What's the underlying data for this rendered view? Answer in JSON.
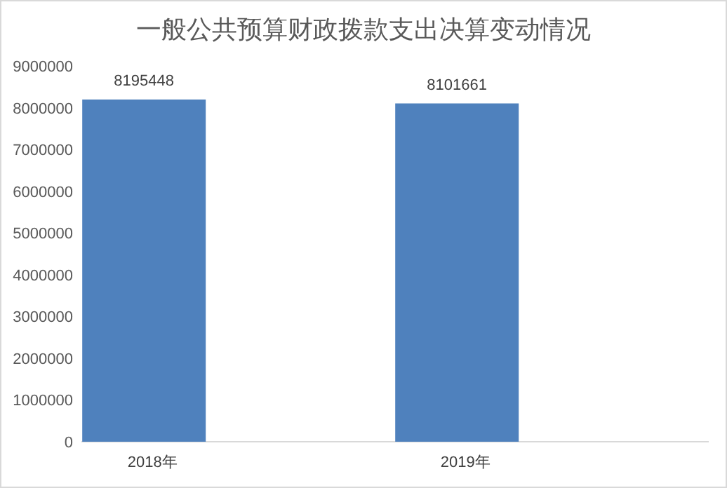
{
  "chart_data": {
    "type": "bar",
    "title": "一般公共预算财政拨款支出决算变动情况",
    "categories": [
      "2018年",
      "2019年"
    ],
    "values": [
      8195448,
      8101661
    ],
    "color": "#4f81bd",
    "ylim": [
      0,
      9000000
    ],
    "yticks": [
      0,
      1000000,
      2000000,
      3000000,
      4000000,
      5000000,
      6000000,
      7000000,
      8000000,
      9000000
    ],
    "data_labels": true
  }
}
